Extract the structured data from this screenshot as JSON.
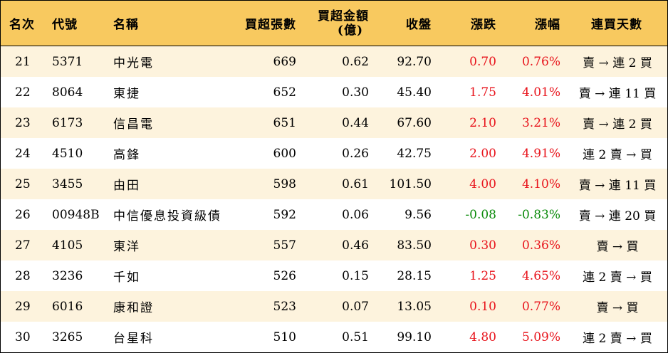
{
  "headers": {
    "rank": "名次",
    "code": "代號",
    "name": "名稱",
    "net_buy_lots": "買超張數",
    "net_buy_amount_line1": "買超金額",
    "net_buy_amount_line2": "(億)",
    "close": "收盤",
    "change": "漲跌",
    "change_pct": "漲幅",
    "streak": "連買天數"
  },
  "rows": [
    {
      "rank": "21",
      "code": "5371",
      "name": "中光電",
      "lots": "669",
      "amount": "0.62",
      "close": "92.70",
      "change": "0.70",
      "pct": "0.76%",
      "streak": "賣 → 連 2 買",
      "dir": "up"
    },
    {
      "rank": "22",
      "code": "8064",
      "name": "東捷",
      "lots": "652",
      "amount": "0.30",
      "close": "45.40",
      "change": "1.75",
      "pct": "4.01%",
      "streak": "賣 → 連 11 買",
      "dir": "up"
    },
    {
      "rank": "23",
      "code": "6173",
      "name": "信昌電",
      "lots": "651",
      "amount": "0.44",
      "close": "67.60",
      "change": "2.10",
      "pct": "3.21%",
      "streak": "賣 → 連 2 買",
      "dir": "up"
    },
    {
      "rank": "24",
      "code": "4510",
      "name": "高鋒",
      "lots": "600",
      "amount": "0.26",
      "close": "42.75",
      "change": "2.00",
      "pct": "4.91%",
      "streak": "連 2 賣 → 買",
      "dir": "up"
    },
    {
      "rank": "25",
      "code": "3455",
      "name": "由田",
      "lots": "598",
      "amount": "0.61",
      "close": "101.50",
      "change": "4.00",
      "pct": "4.10%",
      "streak": "賣 → 連 11 買",
      "dir": "up"
    },
    {
      "rank": "26",
      "code": "00948B",
      "name": "中信優息投資級債",
      "lots": "592",
      "amount": "0.06",
      "close": "9.56",
      "change": "-0.08",
      "pct": "-0.83%",
      "streak": "賣 → 連 20 買",
      "dir": "down"
    },
    {
      "rank": "27",
      "code": "4105",
      "name": "東洋",
      "lots": "557",
      "amount": "0.46",
      "close": "83.50",
      "change": "0.30",
      "pct": "0.36%",
      "streak": "賣 → 買",
      "dir": "up"
    },
    {
      "rank": "28",
      "code": "3236",
      "name": "千如",
      "lots": "526",
      "amount": "0.15",
      "close": "28.15",
      "change": "1.25",
      "pct": "4.65%",
      "streak": "連 2 賣 → 買",
      "dir": "up"
    },
    {
      "rank": "29",
      "code": "6016",
      "name": "康和證",
      "lots": "523",
      "amount": "0.07",
      "close": "13.05",
      "change": "0.10",
      "pct": "0.77%",
      "streak": "賣 → 買",
      "dir": "up"
    },
    {
      "rank": "30",
      "code": "3265",
      "name": "台星科",
      "lots": "510",
      "amount": "0.51",
      "close": "99.10",
      "change": "4.80",
      "pct": "5.09%",
      "streak": "連 2 賣 → 買",
      "dir": "up"
    }
  ],
  "colors": {
    "header_bg": "#f8c95f",
    "odd_row_bg": "#fdf3dd",
    "even_row_bg": "#ffffff",
    "up": "#e8141c",
    "down": "#0a8a0a"
  }
}
